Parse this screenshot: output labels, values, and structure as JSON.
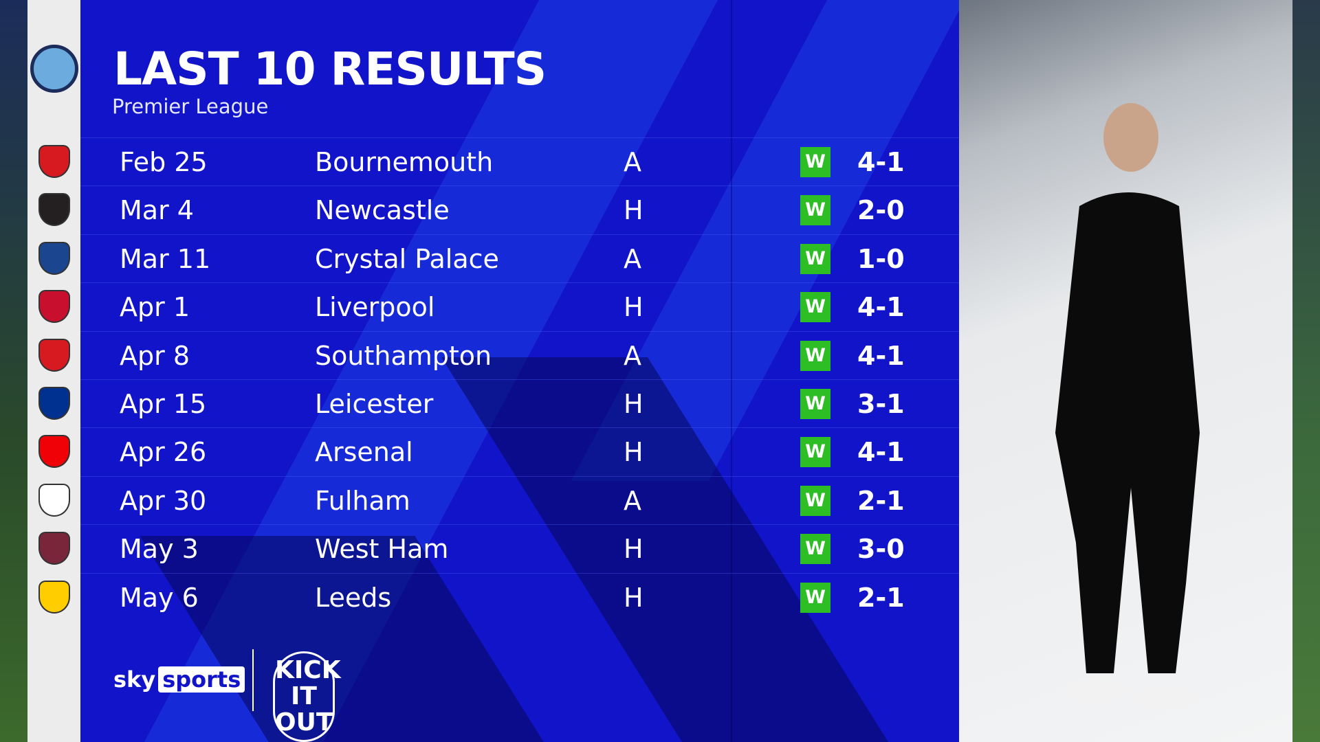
{
  "header": {
    "title": "LAST 10 RESULTS",
    "subtitle": "Premier League"
  },
  "team_crest": "manchester-city-crest",
  "results": [
    {
      "date": "Feb 25",
      "opponent": "Bournemouth",
      "venue": "A",
      "outcome": "W",
      "score": "4-1",
      "crest_color": "#d71920"
    },
    {
      "date": "Mar 4",
      "opponent": "Newcastle",
      "venue": "H",
      "outcome": "W",
      "score": "2-0",
      "crest_color": "#241f20"
    },
    {
      "date": "Mar 11",
      "opponent": "Crystal Palace",
      "venue": "A",
      "outcome": "W",
      "score": "1-0",
      "crest_color": "#1b458f"
    },
    {
      "date": "Apr 1",
      "opponent": "Liverpool",
      "venue": "H",
      "outcome": "W",
      "score": "4-1",
      "crest_color": "#c8102e"
    },
    {
      "date": "Apr 8",
      "opponent": "Southampton",
      "venue": "A",
      "outcome": "W",
      "score": "4-1",
      "crest_color": "#d71920"
    },
    {
      "date": "Apr 15",
      "opponent": "Leicester",
      "venue": "H",
      "outcome": "W",
      "score": "3-1",
      "crest_color": "#003090"
    },
    {
      "date": "Apr 26",
      "opponent": "Arsenal",
      "venue": "H",
      "outcome": "W",
      "score": "4-1",
      "crest_color": "#ef0107"
    },
    {
      "date": "Apr 30",
      "opponent": "Fulham",
      "venue": "A",
      "outcome": "W",
      "score": "2-1",
      "crest_color": "#ffffff"
    },
    {
      "date": "May 3",
      "opponent": "West Ham",
      "venue": "H",
      "outcome": "W",
      "score": "3-0",
      "crest_color": "#7a263a"
    },
    {
      "date": "May 6",
      "opponent": "Leeds",
      "venue": "H",
      "outcome": "W",
      "score": "2-1",
      "crest_color": "#ffcd00"
    }
  ],
  "footer": {
    "brand_sky": "sky",
    "brand_sports": "sports",
    "campaign": "KICK IT OUT"
  },
  "colors": {
    "panel": "#1114c8",
    "win": "#2dbd25"
  }
}
